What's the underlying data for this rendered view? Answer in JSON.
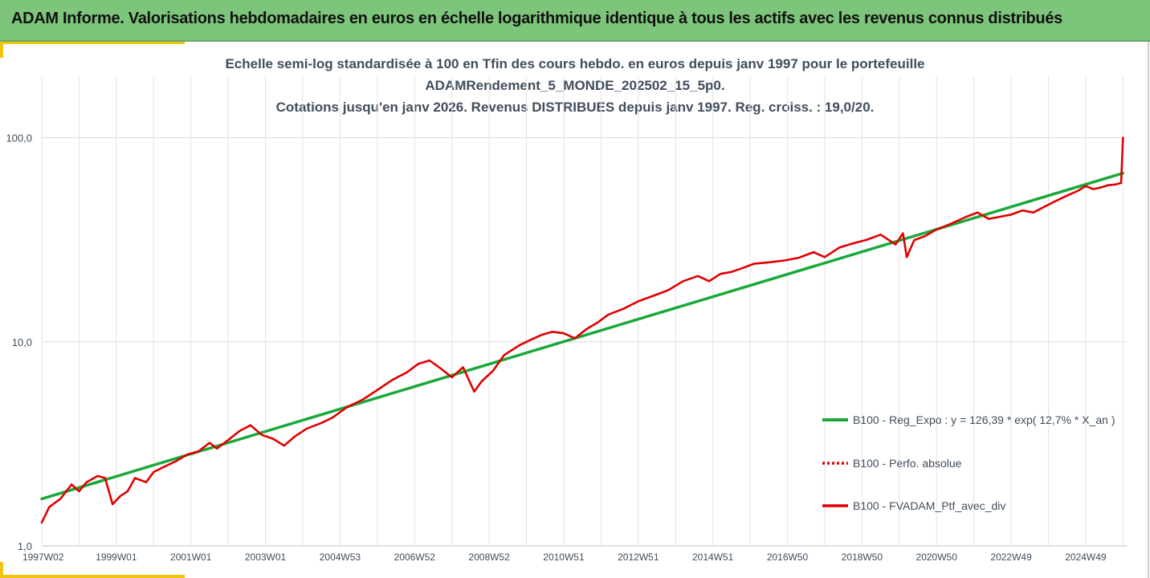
{
  "banner": {
    "title": "ADAM Informe. Valorisations hebdomadaires en euros en échelle logarithmique identique à tous les actifs avec les revenus connus distribués"
  },
  "chart_data": {
    "type": "line",
    "title_lines": [
      "Echelle semi-log standardisée à 100 en Tfin des cours hebdo. en euros depuis janv 1997 pour le portefeuille",
      "ADAMRendement_5_MONDE_202502_15_5p0.",
      "Cotations jusqu'en janv 2026. Revenus DISTRIBUES depuis janv 1997. Reg. croiss. : 19,0/20."
    ],
    "y_scale": "log",
    "ylim": [
      1,
      200
    ],
    "y_ticks": [
      1,
      10,
      100
    ],
    "y_tick_labels": [
      "1,0",
      "10,0",
      "100,0"
    ],
    "xlim": [
      1997.0,
      2026.1
    ],
    "x_tick_labels": [
      "1997W02",
      "1999W01",
      "2001W01",
      "2003W01",
      "2004W53",
      "2006W52",
      "2008W52",
      "2010W51",
      "2012W51",
      "2014W51",
      "2016W50",
      "2018W50",
      "2020W50",
      "2022W49",
      "2024W49"
    ],
    "x_tick_positions": [
      1997.0,
      1999.0,
      2001.0,
      2003.0,
      2005.0,
      2007.0,
      2009.0,
      2011.0,
      2013.0,
      2015.0,
      2017.0,
      2019.0,
      2021.0,
      2023.0,
      2025.0
    ],
    "grid": true,
    "legend_position": "right",
    "series": [
      {
        "name": "B100 - Reg_Expo : y = 126,39 * exp( 12,7% *  X_an )",
        "color": "#1aa83a",
        "style": "solid",
        "x": [
          1997.0,
          2026.0
        ],
        "y": [
          1.7,
          67
        ]
      },
      {
        "name": "B100 - Perfo. absolue",
        "color": "#e00000",
        "style": "dotted",
        "x": [],
        "y": []
      },
      {
        "name": "B100 - FVADAM_Ptf_avec_div",
        "color": "#e00000",
        "style": "solid",
        "x": [
          1997.0,
          1997.2,
          1997.5,
          1997.8,
          1998.0,
          1998.2,
          1998.5,
          1998.7,
          1998.9,
          1999.1,
          1999.3,
          1999.5,
          1999.8,
          2000.0,
          2000.3,
          2000.6,
          2000.9,
          2001.2,
          2001.5,
          2001.7,
          2002.0,
          2002.3,
          2002.6,
          2002.9,
          2003.2,
          2003.5,
          2003.8,
          2004.1,
          2004.5,
          2004.8,
          2005.2,
          2005.6,
          2006.0,
          2006.4,
          2006.8,
          2007.1,
          2007.4,
          2007.7,
          2008.0,
          2008.3,
          2008.6,
          2008.8,
          2009.1,
          2009.4,
          2009.8,
          2010.1,
          2010.4,
          2010.7,
          2011.0,
          2011.3,
          2011.6,
          2011.9,
          2012.2,
          2012.6,
          2013.0,
          2013.4,
          2013.8,
          2014.2,
          2014.6,
          2014.9,
          2015.2,
          2015.5,
          2015.8,
          2016.1,
          2016.5,
          2016.9,
          2017.3,
          2017.7,
          2018.0,
          2018.4,
          2018.8,
          2019.1,
          2019.5,
          2019.9,
          2020.1,
          2020.2,
          2020.4,
          2020.7,
          2021.0,
          2021.4,
          2021.8,
          2022.1,
          2022.4,
          2022.7,
          2023.0,
          2023.3,
          2023.6,
          2023.9,
          2024.2,
          2024.5,
          2024.8,
          2025.0,
          2025.2,
          2025.4,
          2025.6,
          2025.8,
          2025.95,
          2026.0
        ],
        "y": [
          1.3,
          1.55,
          1.7,
          2.0,
          1.85,
          2.05,
          2.2,
          2.15,
          1.6,
          1.75,
          1.85,
          2.15,
          2.05,
          2.3,
          2.45,
          2.6,
          2.8,
          2.9,
          3.2,
          3.0,
          3.3,
          3.65,
          3.9,
          3.5,
          3.35,
          3.1,
          3.45,
          3.75,
          4.0,
          4.25,
          4.8,
          5.2,
          5.8,
          6.5,
          7.1,
          7.8,
          8.1,
          7.4,
          6.7,
          7.5,
          5.7,
          6.4,
          7.2,
          8.6,
          9.6,
          10.2,
          10.8,
          11.2,
          11.0,
          10.4,
          11.5,
          12.4,
          13.6,
          14.5,
          15.8,
          16.8,
          17.9,
          19.8,
          21.0,
          19.8,
          21.5,
          22.0,
          23.0,
          24.1,
          24.5,
          25.0,
          25.8,
          27.5,
          26.0,
          29.0,
          30.5,
          31.5,
          33.5,
          30.0,
          34.0,
          26.0,
          31.5,
          33.0,
          35.5,
          38.0,
          41.0,
          43.0,
          40.0,
          41.0,
          42.0,
          44.0,
          43.0,
          46.0,
          49.0,
          52.0,
          55.0,
          58.0,
          56.0,
          57.0,
          58.5,
          59.0,
          60.0,
          100.0
        ]
      }
    ]
  }
}
